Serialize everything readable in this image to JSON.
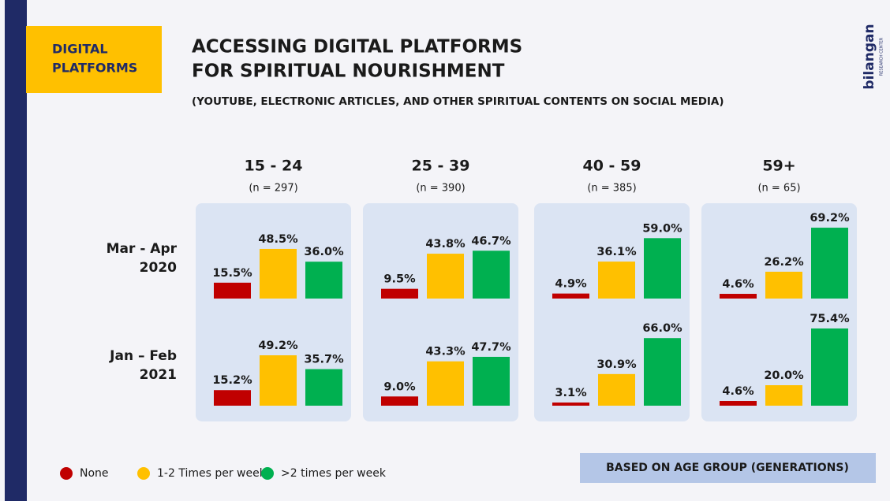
{
  "chart_data": {
    "type": "bar",
    "badge": [
      "DIGITAL",
      "PLATFORMS"
    ],
    "title": [
      "ACCESSING DIGITAL PLATFORMS",
      "FOR SPIRITUAL NOURISHMENT"
    ],
    "subtitle": "(YOUTUBE, ELECTRONIC ARTICLES, AND OTHER SPIRITUAL CONTENTS ON SOCIAL MEDIA)",
    "brand": "bilangan",
    "brand_sub": "RESEARCH CENTER",
    "groups": [
      {
        "label": "15 - 24",
        "n": "(n = 297)"
      },
      {
        "label": "25 - 39",
        "n": "(n = 390)"
      },
      {
        "label": "40 - 59",
        "n": "(n = 385)"
      },
      {
        "label": "59+",
        "n": "(n = 65)"
      }
    ],
    "rows": [
      [
        "Mar - Apr",
        "2020"
      ],
      [
        "Jan – Feb",
        "2021"
      ]
    ],
    "series": [
      {
        "name": "None",
        "color": "#c00000",
        "values": [
          [
            15.5,
            15.2
          ],
          [
            9.5,
            9.0
          ],
          [
            4.9,
            3.1
          ],
          [
            4.6,
            4.6
          ]
        ],
        "value_labels": [
          [
            "15.5%",
            "15.2%"
          ],
          [
            "9.5%",
            "9.0%"
          ],
          [
            "4.9%",
            "3.1%"
          ],
          [
            "4.6%",
            "4.6%"
          ]
        ]
      },
      {
        "name": "1-2 Times per week",
        "color": "#ffc000",
        "values": [
          [
            48.5,
            49.2
          ],
          [
            43.8,
            43.3
          ],
          [
            36.1,
            30.9
          ],
          [
            26.2,
            20.0
          ]
        ],
        "value_labels": [
          [
            "48.5%",
            "49.2%"
          ],
          [
            "43.8%",
            "43.3%"
          ],
          [
            "36.1%",
            "30.9%"
          ],
          [
            "26.2%",
            "20.0%"
          ]
        ]
      },
      {
        "name": ">2 times per week",
        "color": "#00b050",
        "values": [
          [
            36.0,
            35.7
          ],
          [
            46.7,
            47.7
          ],
          [
            59.0,
            66.0
          ],
          [
            69.2,
            75.4
          ]
        ],
        "value_labels": [
          [
            "36.0%",
            "35.7%"
          ],
          [
            "46.7%",
            "47.7%"
          ],
          [
            "59.0%",
            "66.0%"
          ],
          [
            "69.2%",
            "75.4%"
          ]
        ]
      }
    ],
    "footnote": "BASED ON AGE GROUP (GENERATIONS)"
  }
}
